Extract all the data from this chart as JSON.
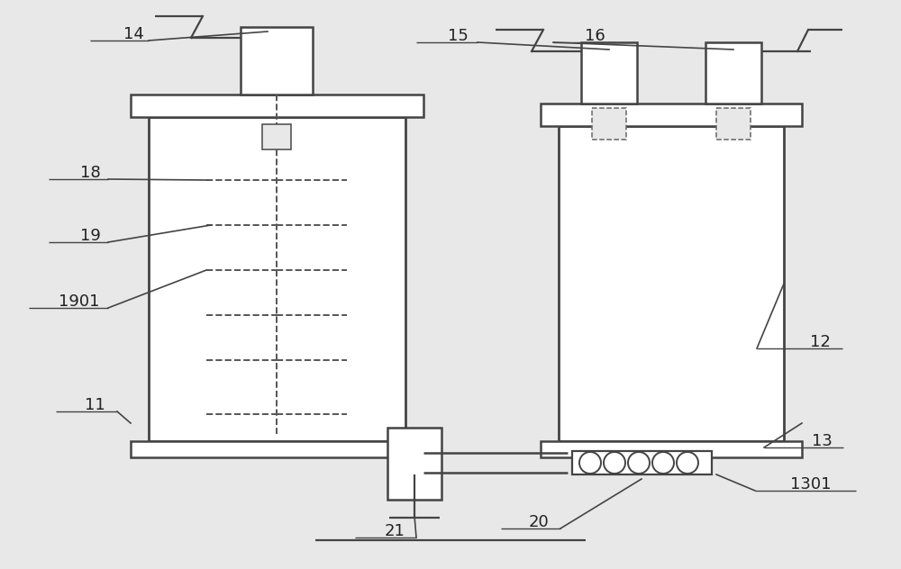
{
  "bg_color": "#e8e8e8",
  "line_color": "#444444",
  "fig_w": 10.0,
  "fig_h": 6.32,
  "dpi": 100
}
